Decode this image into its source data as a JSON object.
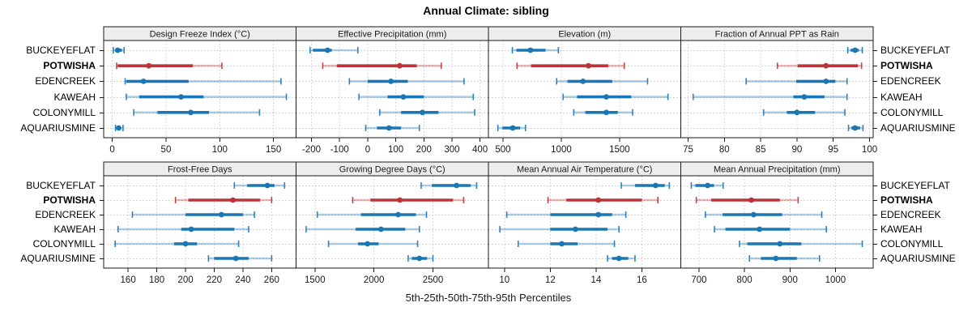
{
  "title": "Annual Climate: sibling",
  "xlabel": "5th-25th-50th-75th-95th Percentiles",
  "stations": [
    "BUCKEYEFLAT",
    "POTWISHA",
    "EDENCREEK",
    "KAWEAH",
    "COLONYMILL",
    "AQUARIUSMINE"
  ],
  "highlight_station": "POTWISHA",
  "colors": {
    "series": "#1A77B4",
    "highlight": "#BB3438",
    "strip_bg": "#EDEDED",
    "border": "#1A1A1A",
    "grid": "#C9C9C9",
    "text": "#000000"
  },
  "chart_data": {
    "type": "dot-whisker",
    "percentiles": [
      5,
      25,
      50,
      75,
      95
    ],
    "legend_note": "5th-25th-50th-75th-95th Percentiles",
    "grid": "dashed",
    "panels": [
      {
        "title": "Design Freeze Index (°C)",
        "ticks": [
          0,
          50,
          100,
          150
        ],
        "xlim": [
          -8,
          171
        ],
        "values": {
          "BUCKEYEFLAT": [
            1,
            3,
            5,
            9,
            11
          ],
          "POTWISHA": [
            4,
            5,
            34,
            75,
            102
          ],
          "EDENCREEK": [
            12,
            13,
            29,
            71,
            157
          ],
          "KAWEAH": [
            13,
            25,
            64,
            85,
            162
          ],
          "COLONYMILL": [
            20,
            42,
            73,
            90,
            137
          ],
          "AQUARIUSMINE": [
            3,
            4,
            6,
            8,
            10
          ]
        }
      },
      {
        "title": "Effective Precipitation (mm)",
        "ticks": [
          -200,
          -100,
          0,
          100,
          200,
          300,
          400
        ],
        "xlim": [
          -255,
          430
        ],
        "values": {
          "BUCKEYEFLAT": [
            -205,
            -195,
            -143,
            -128,
            -35
          ],
          "POTWISHA": [
            -160,
            -110,
            114,
            175,
            262
          ],
          "EDENCREEK": [
            -65,
            0,
            83,
            143,
            343
          ],
          "KAWEAH": [
            -31,
            71,
            127,
            200,
            376
          ],
          "COLONYMILL": [
            43,
            119,
            195,
            252,
            381
          ],
          "AQUARIUSMINE": [
            -7,
            33,
            76,
            119,
            184
          ]
        }
      },
      {
        "title": "Elevation (m)",
        "ticks": [
          500,
          1000,
          1500
        ],
        "xlim": [
          375,
          2025
        ],
        "values": {
          "BUCKEYEFLAT": [
            580,
            615,
            735,
            865,
            975
          ],
          "POTWISHA": [
            620,
            740,
            1233,
            1403,
            1540
          ],
          "EDENCREEK": [
            960,
            1053,
            1186,
            1437,
            1740
          ],
          "KAWEAH": [
            1015,
            1135,
            1386,
            1600,
            1915
          ],
          "COLONYMILL": [
            1107,
            1205,
            1386,
            1484,
            1612
          ],
          "AQUARIUSMINE": [
            456,
            495,
            584,
            647,
            693
          ]
        }
      },
      {
        "title": "Fraction of Annual PPT as Rain",
        "ticks": [
          75,
          80,
          85,
          90,
          95,
          100
        ],
        "xlim": [
          74,
          100.5
        ],
        "values": {
          "BUCKEYEFLAT": [
            97,
            97.4,
            98,
            98.5,
            99
          ],
          "POTWISHA": [
            87.3,
            90.1,
            94,
            98.4,
            98.9
          ],
          "EDENCREEK": [
            83,
            89.9,
            94,
            95.3,
            96.9
          ],
          "KAWEAH": [
            75.7,
            89.5,
            91,
            93.8,
            96.9
          ],
          "COLONYMILL": [
            85.4,
            88.6,
            90,
            92.5,
            96.6
          ],
          "AQUARIUSMINE": [
            97.1,
            97.5,
            98,
            98.7,
            99.1
          ]
        }
      },
      {
        "title": "Frost-Free Days",
        "ticks": [
          160,
          180,
          200,
          220,
          240,
          260
        ],
        "xlim": [
          143,
          277
        ],
        "values": {
          "BUCKEYEFLAT": [
            234,
            243,
            257,
            262,
            269
          ],
          "POTWISHA": [
            193,
            202,
            233,
            252,
            260
          ],
          "EDENCREEK": [
            163,
            200,
            225,
            240,
            248
          ],
          "KAWEAH": [
            153,
            197,
            204,
            234,
            244
          ],
          "COLONYMILL": [
            151,
            192,
            200,
            208,
            237
          ],
          "AQUARIUSMINE": [
            216,
            220,
            235,
            244,
            260
          ]
        }
      },
      {
        "title": "Growing Degree Days (°C)",
        "ticks": [
          1500,
          2000,
          2500
        ],
        "xlim": [
          1340,
          2970
        ],
        "values": {
          "BUCKEYEFLAT": [
            2400,
            2490,
            2700,
            2820,
            2870
          ],
          "POTWISHA": [
            1820,
            1970,
            2220,
            2670,
            2760
          ],
          "EDENCREEK": [
            1520,
            1890,
            2205,
            2355,
            2445
          ],
          "KAWEAH": [
            1425,
            1845,
            2060,
            2265,
            2385
          ],
          "COLONYMILL": [
            1615,
            1865,
            1945,
            2040,
            2370
          ],
          "AQUARIUSMINE": [
            2290,
            2320,
            2385,
            2450,
            2500
          ]
        }
      },
      {
        "title": "Mean Annual Air Temperature (°C)",
        "ticks": [
          10,
          12,
          14,
          16
        ],
        "xlim": [
          9.3,
          17.7
        ],
        "values": {
          "BUCKEYEFLAT": [
            15.1,
            15.7,
            16.6,
            17.0,
            17.2
          ],
          "POTWISHA": [
            11.9,
            12.7,
            14.1,
            16.0,
            16.7
          ],
          "EDENCREEK": [
            10.1,
            12.0,
            14.1,
            14.7,
            15.3
          ],
          "KAWEAH": [
            9.8,
            12.0,
            13.1,
            14.5,
            15.0
          ],
          "COLONYMILL": [
            10.6,
            12.0,
            12.5,
            13.2,
            14.8
          ],
          "AQUARIUSMINE": [
            14.5,
            14.7,
            15.0,
            15.4,
            15.7
          ]
        }
      },
      {
        "title": "Mean Annual Precipitation (mm)",
        "ticks": [
          700,
          800,
          900,
          1000
        ],
        "xlim": [
          660,
          1083
        ],
        "values": {
          "BUCKEYEFLAT": [
            683,
            692,
            719,
            733,
            753
          ],
          "POTWISHA": [
            694,
            727,
            815,
            878,
            918
          ],
          "EDENCREEK": [
            714,
            752,
            820,
            883,
            970
          ],
          "KAWEAH": [
            734,
            758,
            833,
            900,
            980
          ],
          "COLONYMILL": [
            789,
            806,
            878,
            925,
            1059
          ],
          "AQUARIUSMINE": [
            811,
            836,
            869,
            915,
            965
          ]
        }
      }
    ]
  }
}
